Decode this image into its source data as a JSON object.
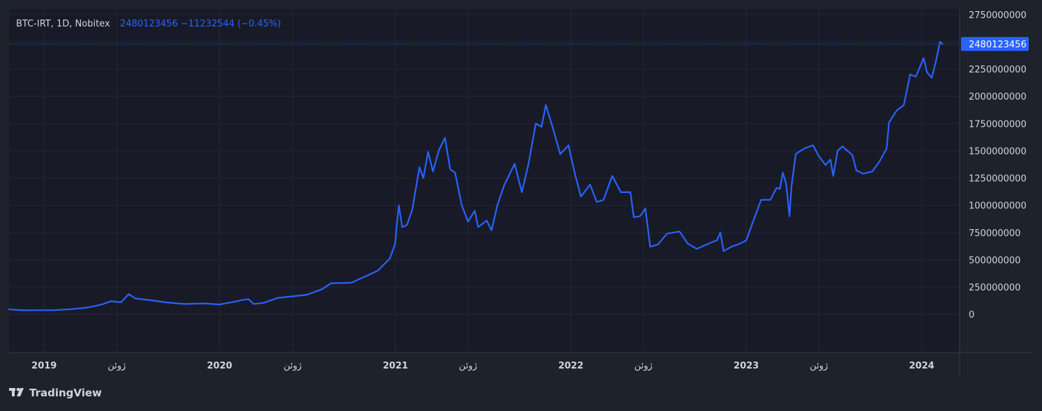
{
  "header": {
    "symbol_info": "BTC-IRT, 1D, Nobitex",
    "last_price": "2480123456",
    "change": "−11232544 (−0.45%)"
  },
  "price_tag": "2480123456",
  "brand": {
    "name": "TradingView",
    "logo_text": "TV"
  },
  "colors": {
    "background": "#1e222d",
    "pane": "#181b27",
    "grid": "#232735",
    "line": "#2962ff",
    "text": "#d1d4dc",
    "tag_bg": "#2962ff"
  },
  "chart_data": {
    "type": "line",
    "title": "BTC-IRT, 1D, Nobitex",
    "xlabel": "",
    "ylabel": "",
    "xlim": [
      "2018-10-20",
      "2024-03-20"
    ],
    "ylim": [
      -350000000,
      2800000000
    ],
    "y_ticks": [
      0,
      250000000,
      500000000,
      750000000,
      1000000000,
      1250000000,
      1500000000,
      1750000000,
      2000000000,
      2250000000,
      2500000000,
      2750000000
    ],
    "y_tick_labels": [
      "0",
      "250000000",
      "500000000",
      "750000000",
      "1000000000",
      "1250000000",
      "1500000000",
      "1750000000",
      "2000000000",
      "2250000000",
      "2500000000",
      "2750000000"
    ],
    "x_ticks": [
      {
        "date": "2019-01-01",
        "label": "2019"
      },
      {
        "date": "2019-06-01",
        "label": "ژوئن"
      },
      {
        "date": "2020-01-01",
        "label": "2020"
      },
      {
        "date": "2020-06-01",
        "label": "ژوئن"
      },
      {
        "date": "2021-01-01",
        "label": "2021"
      },
      {
        "date": "2021-06-01",
        "label": "ژوئن"
      },
      {
        "date": "2022-01-01",
        "label": "2022"
      },
      {
        "date": "2022-06-01",
        "label": "ژوئن"
      },
      {
        "date": "2023-01-01",
        "label": "2023"
      },
      {
        "date": "2023-06-01",
        "label": "ژوئن"
      },
      {
        "date": "2024-01-01",
        "label": "2024"
      }
    ],
    "last_value": 2480123456,
    "grid": true,
    "series": [
      {
        "points": [
          [
            "2018-10-20",
            45000000
          ],
          [
            "2018-11-15",
            37000000
          ],
          [
            "2018-12-15",
            38000000
          ],
          [
            "2019-01-20",
            38000000
          ],
          [
            "2019-03-01",
            48000000
          ],
          [
            "2019-04-01",
            62000000
          ],
          [
            "2019-05-01",
            90000000
          ],
          [
            "2019-05-20",
            120000000
          ],
          [
            "2019-06-10",
            110000000
          ],
          [
            "2019-06-26",
            185000000
          ],
          [
            "2019-07-10",
            145000000
          ],
          [
            "2019-08-10",
            130000000
          ],
          [
            "2019-09-10",
            110000000
          ],
          [
            "2019-10-20",
            95000000
          ],
          [
            "2019-12-01",
            100000000
          ],
          [
            "2020-01-01",
            90000000
          ],
          [
            "2020-02-01",
            115000000
          ],
          [
            "2020-02-15",
            130000000
          ],
          [
            "2020-03-01",
            140000000
          ],
          [
            "2020-03-12",
            95000000
          ],
          [
            "2020-04-01",
            105000000
          ],
          [
            "2020-05-01",
            150000000
          ],
          [
            "2020-06-01",
            165000000
          ],
          [
            "2020-07-01",
            180000000
          ],
          [
            "2020-08-01",
            230000000
          ],
          [
            "2020-08-20",
            285000000
          ],
          [
            "2020-10-01",
            290000000
          ],
          [
            "2020-11-01",
            350000000
          ],
          [
            "2020-11-25",
            400000000
          ],
          [
            "2020-12-20",
            510000000
          ],
          [
            "2020-12-31",
            640000000
          ],
          [
            "2021-01-08",
            1000000000
          ],
          [
            "2021-01-15",
            800000000
          ],
          [
            "2021-01-25",
            820000000
          ],
          [
            "2021-02-05",
            960000000
          ],
          [
            "2021-02-20",
            1350000000
          ],
          [
            "2021-02-28",
            1250000000
          ],
          [
            "2021-03-10",
            1490000000
          ],
          [
            "2021-03-20",
            1310000000
          ],
          [
            "2021-04-01",
            1500000000
          ],
          [
            "2021-04-14",
            1620000000
          ],
          [
            "2021-04-25",
            1330000000
          ],
          [
            "2021-05-05",
            1300000000
          ],
          [
            "2021-05-19",
            1000000000
          ],
          [
            "2021-06-01",
            850000000
          ],
          [
            "2021-06-15",
            950000000
          ],
          [
            "2021-06-22",
            800000000
          ],
          [
            "2021-07-10",
            860000000
          ],
          [
            "2021-07-20",
            770000000
          ],
          [
            "2021-08-01",
            1000000000
          ],
          [
            "2021-08-15",
            1180000000
          ],
          [
            "2021-09-06",
            1380000000
          ],
          [
            "2021-09-21",
            1120000000
          ],
          [
            "2021-10-05",
            1380000000
          ],
          [
            "2021-10-20",
            1750000000
          ],
          [
            "2021-11-01",
            1720000000
          ],
          [
            "2021-11-10",
            1920000000
          ],
          [
            "2021-11-25",
            1700000000
          ],
          [
            "2021-12-10",
            1470000000
          ],
          [
            "2021-12-27",
            1550000000
          ],
          [
            "2022-01-10",
            1280000000
          ],
          [
            "2022-01-22",
            1080000000
          ],
          [
            "2022-02-10",
            1190000000
          ],
          [
            "2022-02-24",
            1030000000
          ],
          [
            "2022-03-10",
            1050000000
          ],
          [
            "2022-03-28",
            1270000000
          ],
          [
            "2022-04-15",
            1120000000
          ],
          [
            "2022-05-05",
            1120000000
          ],
          [
            "2022-05-12",
            890000000
          ],
          [
            "2022-05-25",
            900000000
          ],
          [
            "2022-06-05",
            970000000
          ],
          [
            "2022-06-15",
            620000000
          ],
          [
            "2022-07-01",
            640000000
          ],
          [
            "2022-07-20",
            740000000
          ],
          [
            "2022-08-15",
            760000000
          ],
          [
            "2022-09-01",
            650000000
          ],
          [
            "2022-09-20",
            600000000
          ],
          [
            "2022-10-10",
            640000000
          ],
          [
            "2022-11-01",
            680000000
          ],
          [
            "2022-11-08",
            750000000
          ],
          [
            "2022-11-15",
            580000000
          ],
          [
            "2022-12-01",
            620000000
          ],
          [
            "2022-12-20",
            650000000
          ],
          [
            "2023-01-01",
            680000000
          ],
          [
            "2023-01-15",
            850000000
          ],
          [
            "2023-02-01",
            1050000000
          ],
          [
            "2023-02-20",
            1050000000
          ],
          [
            "2023-03-05",
            1160000000
          ],
          [
            "2023-03-12",
            1150000000
          ],
          [
            "2023-03-18",
            1300000000
          ],
          [
            "2023-03-25",
            1200000000
          ],
          [
            "2023-04-01",
            900000000
          ],
          [
            "2023-04-05",
            1170000000
          ],
          [
            "2023-04-14",
            1470000000
          ],
          [
            "2023-05-01",
            1520000000
          ],
          [
            "2023-05-20",
            1550000000
          ],
          [
            "2023-06-01",
            1450000000
          ],
          [
            "2023-06-15",
            1370000000
          ],
          [
            "2023-06-25",
            1420000000
          ],
          [
            "2023-07-01",
            1270000000
          ],
          [
            "2023-07-10",
            1500000000
          ],
          [
            "2023-07-20",
            1540000000
          ],
          [
            "2023-08-10",
            1460000000
          ],
          [
            "2023-08-18",
            1320000000
          ],
          [
            "2023-09-01",
            1290000000
          ],
          [
            "2023-09-20",
            1310000000
          ],
          [
            "2023-10-05",
            1400000000
          ],
          [
            "2023-10-20",
            1520000000
          ],
          [
            "2023-10-25",
            1760000000
          ],
          [
            "2023-11-10",
            1870000000
          ],
          [
            "2023-11-25",
            1920000000
          ],
          [
            "2023-12-08",
            2200000000
          ],
          [
            "2023-12-20",
            2180000000
          ],
          [
            "2024-01-05",
            2350000000
          ],
          [
            "2024-01-12",
            2220000000
          ],
          [
            "2024-01-22",
            2170000000
          ],
          [
            "2024-01-31",
            2330000000
          ],
          [
            "2024-02-08",
            2500000000
          ],
          [
            "2024-02-13",
            2480123456
          ]
        ]
      }
    ]
  }
}
